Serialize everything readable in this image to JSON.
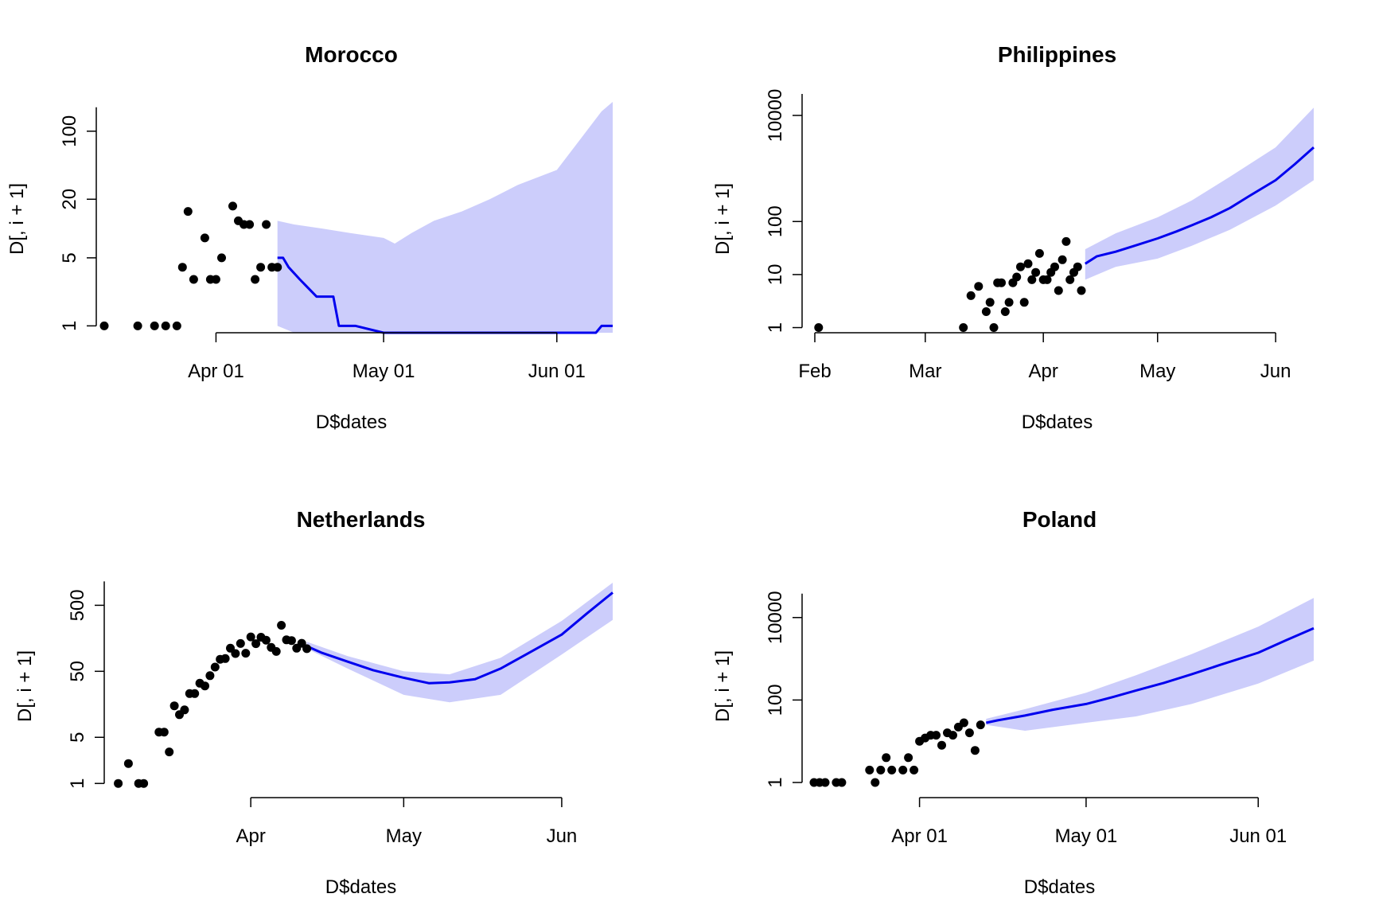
{
  "colors": {
    "points": "#000000",
    "forecast_line": "#0000ee",
    "band": "#cccdfb",
    "axis": "#000000"
  },
  "chart_data": [
    {
      "type": "line",
      "title": "Morocco",
      "xlabel": "D$dates",
      "ylabel": "D[, i + 1]",
      "y_scale": "log",
      "x_ticks": [
        {
          "date": "2020-04-01",
          "label": "Apr 01"
        },
        {
          "date": "2020-05-01",
          "label": "May 01"
        },
        {
          "date": "2020-06-01",
          "label": "Jun 01"
        }
      ],
      "y_ticks": [
        1,
        5,
        20,
        100
      ],
      "y_tick_labels": [
        "1",
        "5",
        "20",
        "100"
      ],
      "xlim": [
        "2020-03-12",
        "2020-06-11"
      ],
      "ylim": [
        0.85,
        200
      ],
      "grid": false,
      "legend": "none",
      "observed": {
        "x": [
          "2020-03-12",
          "2020-03-18",
          "2020-03-21",
          "2020-03-23",
          "2020-03-25",
          "2020-03-26",
          "2020-03-27",
          "2020-03-28",
          "2020-03-30",
          "2020-03-31",
          "2020-04-01",
          "2020-04-02",
          "2020-04-04",
          "2020-04-05",
          "2020-04-06",
          "2020-04-07",
          "2020-04-08",
          "2020-04-09",
          "2020-04-10",
          "2020-04-11",
          "2020-04-12"
        ],
        "y": [
          1,
          1,
          1,
          1,
          1,
          4,
          15,
          3,
          8,
          3,
          3,
          5,
          17,
          12,
          11,
          11,
          3,
          4,
          11,
          4,
          4
        ]
      },
      "forecast": {
        "x": [
          "2020-04-12",
          "2020-04-13",
          "2020-04-14",
          "2020-04-16",
          "2020-04-19",
          "2020-04-22",
          "2020-04-23",
          "2020-04-26",
          "2020-05-01",
          "2020-05-15",
          "2020-06-01",
          "2020-06-08",
          "2020-06-09",
          "2020-06-11"
        ],
        "y": [
          5,
          5,
          4,
          3,
          2,
          2,
          1,
          1,
          0.8,
          0.8,
          0.8,
          0.8,
          1,
          1
        ]
      },
      "band": {
        "x": [
          "2020-04-12",
          "2020-04-15",
          "2020-04-20",
          "2020-04-25",
          "2020-05-01",
          "2020-05-03",
          "2020-05-06",
          "2020-05-10",
          "2020-05-15",
          "2020-05-20",
          "2020-05-25",
          "2020-06-01",
          "2020-06-05",
          "2020-06-09",
          "2020-06-11"
        ],
        "upper": [
          12,
          11,
          10,
          9,
          8,
          7,
          9,
          12,
          15,
          20,
          28,
          40,
          80,
          160,
          200
        ],
        "lower": [
          1,
          0.8,
          0.8,
          0.8,
          0.8,
          0.8,
          0.8,
          0.8,
          0.8,
          0.8,
          0.8,
          0.8,
          0.8,
          0.8,
          0.8
        ]
      }
    },
    {
      "type": "line",
      "title": "Philippines",
      "xlabel": "D$dates",
      "ylabel": "D[, i + 1]",
      "y_scale": "log",
      "x_ticks": [
        {
          "date": "2020-02-01",
          "label": "Feb"
        },
        {
          "date": "2020-03-01",
          "label": "Mar"
        },
        {
          "date": "2020-04-01",
          "label": "Apr"
        },
        {
          "date": "2020-05-01",
          "label": "May"
        },
        {
          "date": "2020-06-01",
          "label": "Jun"
        }
      ],
      "y_ticks": [
        1,
        10,
        100,
        10000
      ],
      "y_tick_labels": [
        "1",
        "10",
        "100",
        "10000"
      ],
      "xlim": [
        "2020-02-01",
        "2020-06-11"
      ],
      "ylim": [
        0.8,
        18000
      ],
      "grid": false,
      "legend": "none",
      "observed": {
        "x": [
          "2020-02-02",
          "2020-03-11",
          "2020-03-13",
          "2020-03-15",
          "2020-03-17",
          "2020-03-18",
          "2020-03-19",
          "2020-03-20",
          "2020-03-21",
          "2020-03-22",
          "2020-03-23",
          "2020-03-24",
          "2020-03-25",
          "2020-03-26",
          "2020-03-27",
          "2020-03-28",
          "2020-03-29",
          "2020-03-30",
          "2020-03-31",
          "2020-04-01",
          "2020-04-02",
          "2020-04-03",
          "2020-04-04",
          "2020-04-05",
          "2020-04-06",
          "2020-04-07",
          "2020-04-08",
          "2020-04-09",
          "2020-04-10",
          "2020-04-11"
        ],
        "y": [
          1,
          1,
          4,
          6,
          2,
          3,
          1,
          7,
          7,
          2,
          3,
          7,
          9,
          14,
          3,
          16,
          8,
          11,
          25,
          8,
          8,
          11,
          14,
          5,
          19,
          42,
          8,
          11,
          14,
          5
        ]
      },
      "forecast": {
        "x": [
          "2020-04-12",
          "2020-04-15",
          "2020-04-20",
          "2020-04-25",
          "2020-05-01",
          "2020-05-06",
          "2020-05-10",
          "2020-05-15",
          "2020-05-20",
          "2020-05-25",
          "2020-06-01",
          "2020-06-06",
          "2020-06-11"
        ],
        "y": [
          16,
          22,
          27,
          35,
          48,
          65,
          85,
          120,
          180,
          300,
          600,
          1200,
          2500
        ]
      },
      "band": {
        "x": [
          "2020-04-12",
          "2020-04-20",
          "2020-05-01",
          "2020-05-10",
          "2020-05-20",
          "2020-06-01",
          "2020-06-11"
        ],
        "upper": [
          30,
          60,
          120,
          250,
          700,
          2500,
          14000
        ],
        "lower": [
          8,
          14,
          20,
          35,
          70,
          200,
          600
        ]
      }
    },
    {
      "type": "line",
      "title": "Netherlands",
      "xlabel": "D$dates",
      "ylabel": "D[, i + 1]",
      "y_scale": "log",
      "x_ticks": [
        {
          "date": "2020-04-01",
          "label": "Apr"
        },
        {
          "date": "2020-05-01",
          "label": "May"
        },
        {
          "date": "2020-06-01",
          "label": "Jun"
        }
      ],
      "y_ticks": [
        1,
        5,
        50,
        500
      ],
      "y_tick_labels": [
        "1",
        "5",
        "50",
        "500"
      ],
      "xlim": [
        "2020-03-07",
        "2020-06-11"
      ],
      "ylim": [
        0.9,
        1100
      ],
      "grid": false,
      "legend": "none",
      "observed": {
        "x": [
          "2020-03-06",
          "2020-03-08",
          "2020-03-10",
          "2020-03-11",
          "2020-03-14",
          "2020-03-15",
          "2020-03-16",
          "2020-03-17",
          "2020-03-18",
          "2020-03-19",
          "2020-03-20",
          "2020-03-21",
          "2020-03-22",
          "2020-03-23",
          "2020-03-24",
          "2020-03-25",
          "2020-03-26",
          "2020-03-27",
          "2020-03-28",
          "2020-03-29",
          "2020-03-30",
          "2020-03-31",
          "2020-04-01",
          "2020-04-02",
          "2020-04-03",
          "2020-04-04",
          "2020-04-05",
          "2020-04-06",
          "2020-04-07",
          "2020-04-08",
          "2020-04-09",
          "2020-04-10",
          "2020-04-11",
          "2020-04-12"
        ],
        "y": [
          1,
          2,
          1,
          1,
          6,
          6,
          3,
          15,
          11,
          13,
          23,
          23,
          33,
          30,
          43,
          58,
          76,
          78,
          112,
          93,
          132,
          94,
          166,
          131,
          164,
          148,
          115,
          100,
          249,
          150,
          146,
          112,
          133,
          110
        ]
      },
      "forecast": {
        "x": [
          "2020-04-12",
          "2020-04-15",
          "2020-04-20",
          "2020-04-25",
          "2020-05-01",
          "2020-05-06",
          "2020-05-10",
          "2020-05-15",
          "2020-05-20",
          "2020-05-25",
          "2020-06-01",
          "2020-06-06",
          "2020-06-11"
        ],
        "y": [
          120,
          95,
          70,
          52,
          40,
          33,
          34,
          38,
          55,
          90,
          180,
          380,
          780
        ]
      },
      "band": {
        "x": [
          "2020-04-12",
          "2020-04-20",
          "2020-05-01",
          "2020-05-10",
          "2020-05-20",
          "2020-06-01",
          "2020-06-11"
        ],
        "upper": [
          140,
          85,
          50,
          45,
          80,
          290,
          1100
        ],
        "lower": [
          110,
          55,
          22,
          17,
          22,
          90,
          300
        ]
      }
    },
    {
      "type": "line",
      "title": "Poland",
      "xlabel": "D$dates",
      "ylabel": "D[, i + 1]",
      "y_scale": "log",
      "x_ticks": [
        {
          "date": "2020-04-01",
          "label": "Apr 01"
        },
        {
          "date": "2020-05-01",
          "label": "May 01"
        },
        {
          "date": "2020-06-01",
          "label": "Jun 01"
        }
      ],
      "y_ticks": [
        1,
        100,
        10000
      ],
      "y_tick_labels": [
        "1",
        "100",
        "10000"
      ],
      "xlim": [
        "2020-03-14",
        "2020-06-11"
      ],
      "ylim": [
        0.8,
        70000
      ],
      "grid": false,
      "legend": "none",
      "observed": {
        "x": [
          "2020-03-13",
          "2020-03-14",
          "2020-03-15",
          "2020-03-17",
          "2020-03-18",
          "2020-03-23",
          "2020-03-24",
          "2020-03-25",
          "2020-03-26",
          "2020-03-27",
          "2020-03-29",
          "2020-03-30",
          "2020-03-31",
          "2020-04-01",
          "2020-04-02",
          "2020-04-03",
          "2020-04-04",
          "2020-04-05",
          "2020-04-06",
          "2020-04-07",
          "2020-04-08",
          "2020-04-09",
          "2020-04-10",
          "2020-04-11",
          "2020-04-12"
        ],
        "y": [
          1,
          1,
          1,
          1,
          1,
          2,
          1,
          2,
          4,
          2,
          2,
          4,
          2,
          10,
          12,
          14,
          14,
          8,
          16,
          14,
          22,
          28,
          16,
          6,
          25
        ]
      },
      "forecast": {
        "x": [
          "2020-04-13",
          "2020-04-15",
          "2020-04-20",
          "2020-04-25",
          "2020-05-01",
          "2020-05-06",
          "2020-05-10",
          "2020-05-15",
          "2020-05-20",
          "2020-05-25",
          "2020-06-01",
          "2020-06-06",
          "2020-06-11"
        ],
        "y": [
          28,
          32,
          42,
          58,
          80,
          120,
          170,
          260,
          420,
          700,
          1400,
          2800,
          5500
        ]
      },
      "band": {
        "x": [
          "2020-04-13",
          "2020-04-20",
          "2020-05-01",
          "2020-05-10",
          "2020-05-20",
          "2020-06-01",
          "2020-06-11"
        ],
        "upper": [
          35,
          60,
          150,
          400,
          1300,
          6000,
          30000
        ],
        "lower": [
          25,
          18,
          28,
          40,
          80,
          250,
          900
        ]
      }
    }
  ]
}
